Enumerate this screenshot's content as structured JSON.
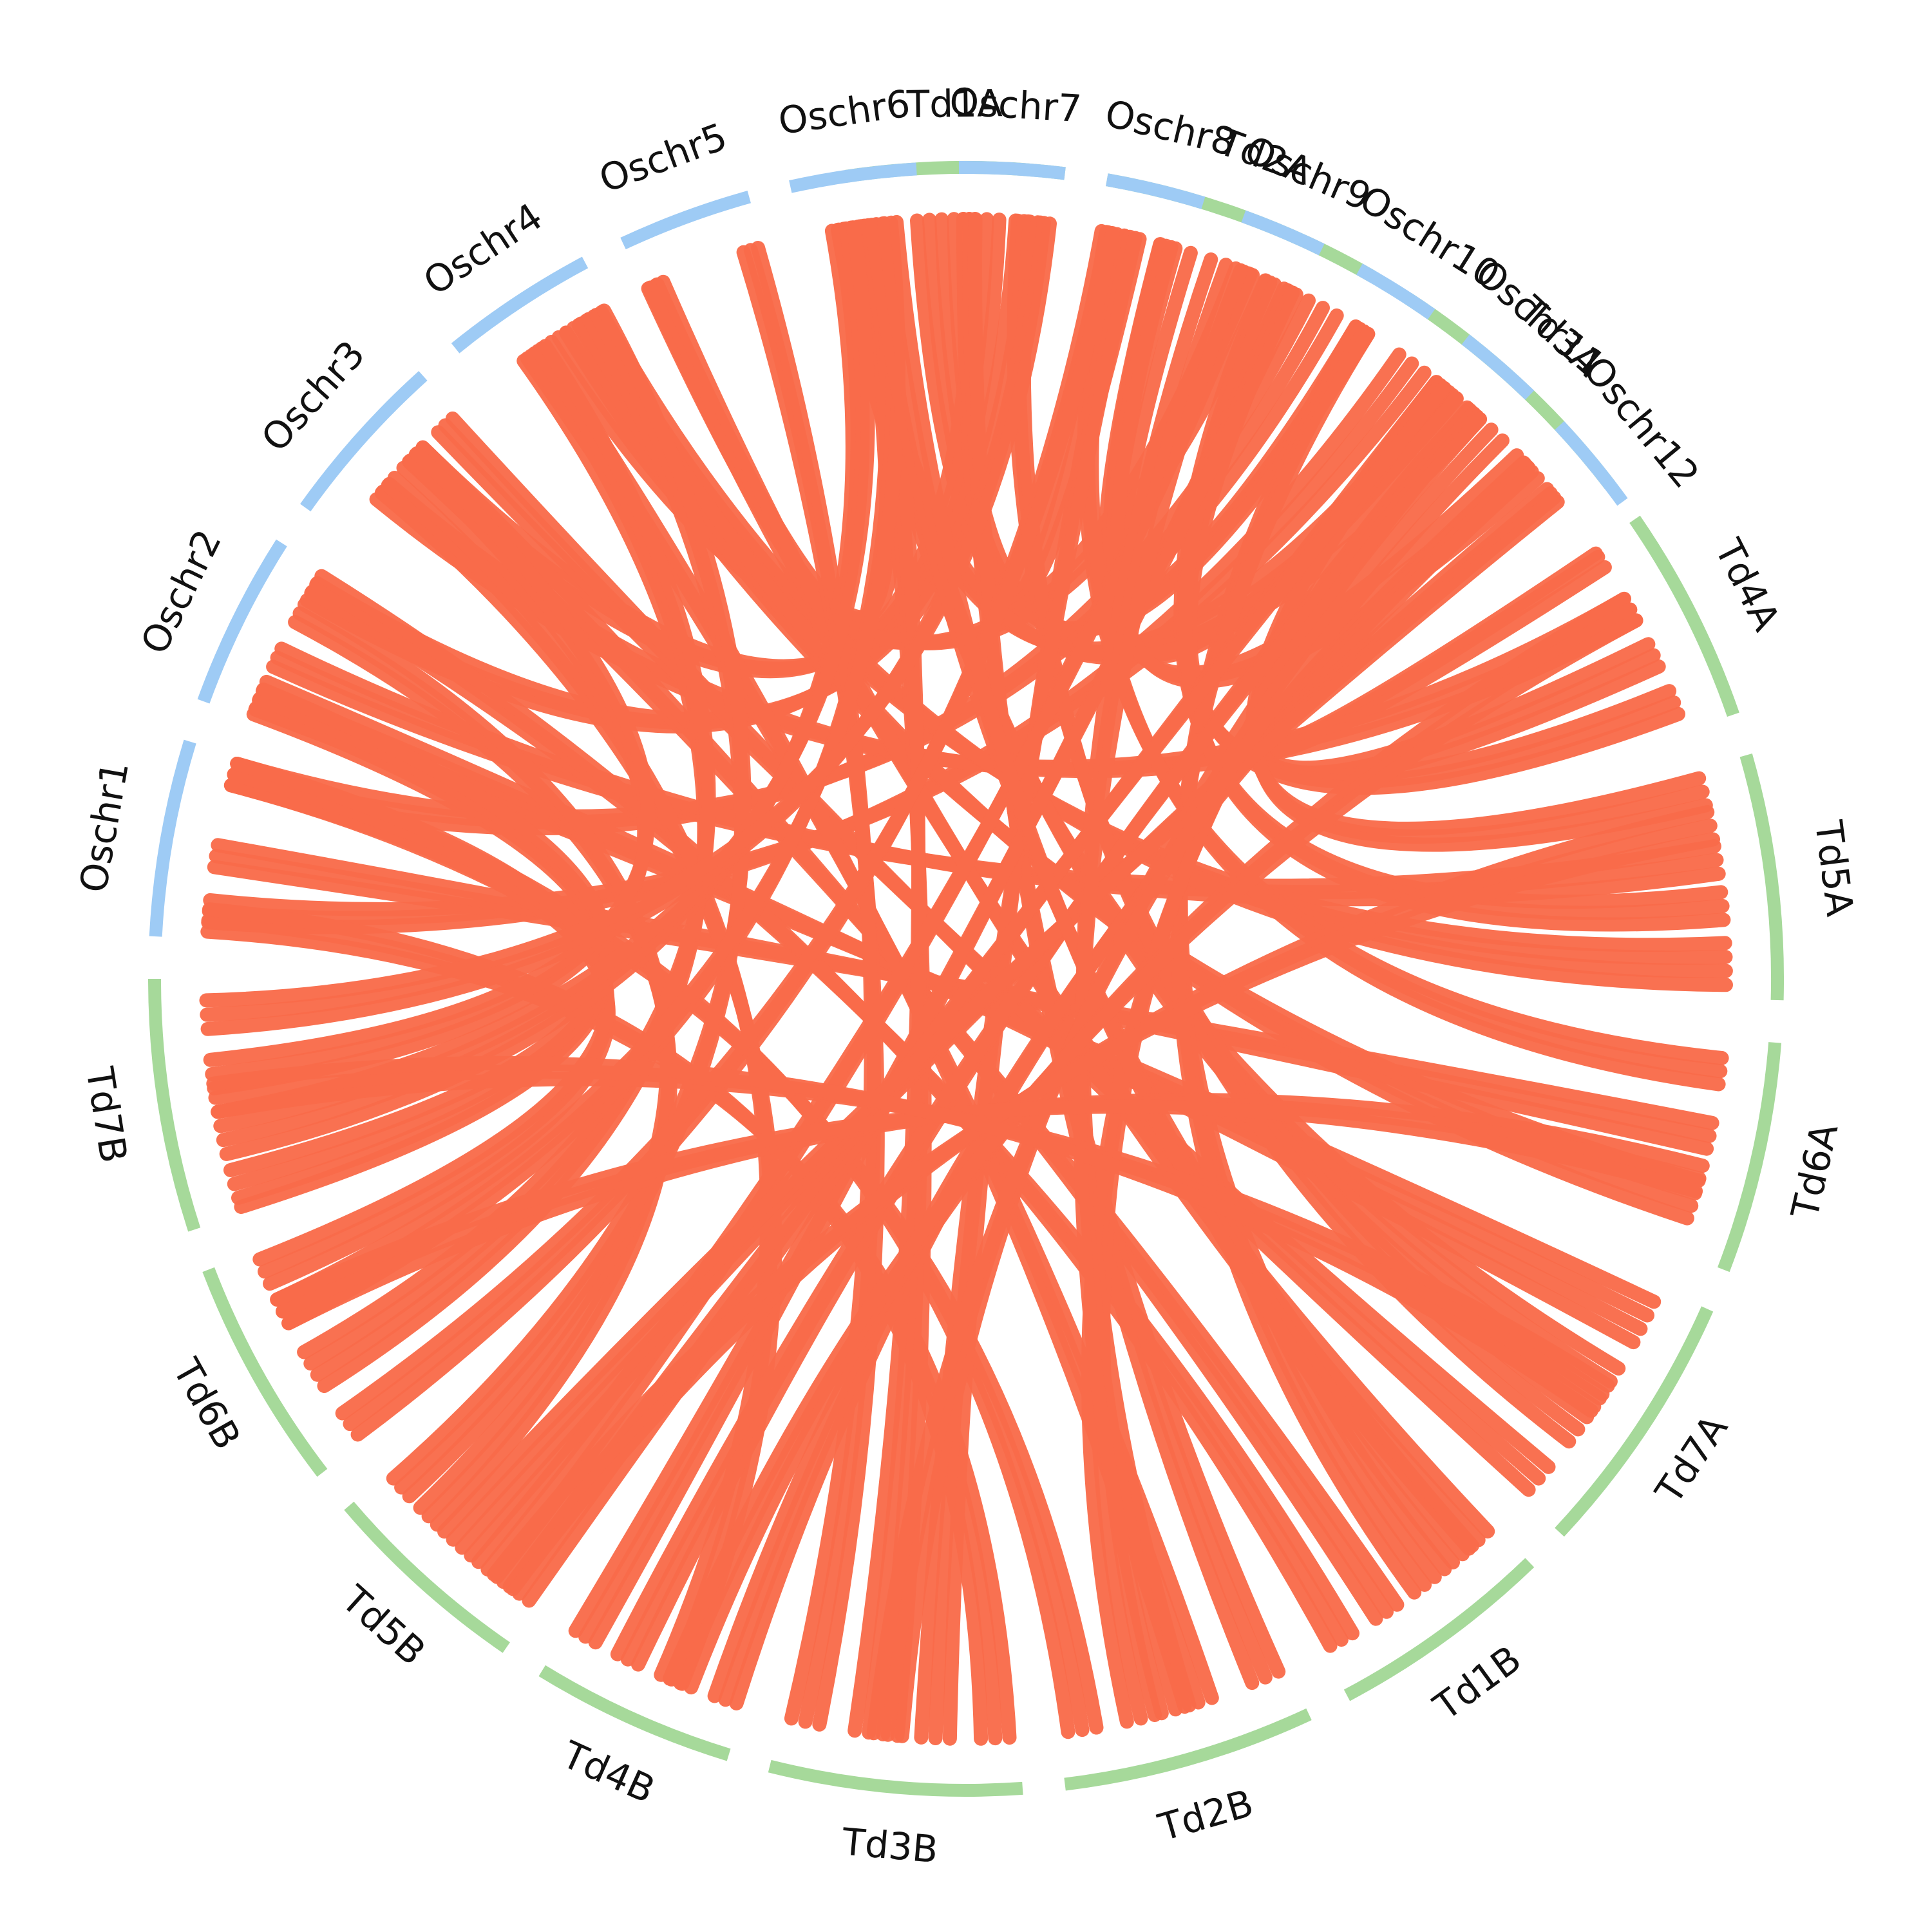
{
  "colors": {
    "rice": "#9ecbf5",
    "wheat": "#a6d99a",
    "link": "#f96b4a"
  },
  "chromosomes": [
    {
      "name": "Td1A",
      "group": "wheat",
      "start": -8.5,
      "end": 7.0
    },
    {
      "name": "Td2A",
      "group": "wheat",
      "start": 10.0,
      "end": 30.0
    },
    {
      "name": "Td3A",
      "group": "wheat",
      "start": 33.0,
      "end": 52.5
    },
    {
      "name": "Td4A",
      "group": "wheat",
      "start": 55.5,
      "end": 71.0
    },
    {
      "name": "Td5A",
      "group": "wheat",
      "start": 74.0,
      "end": 91.5
    },
    {
      "name": "Td6A",
      "group": "wheat",
      "start": 94.5,
      "end": 111.0
    },
    {
      "name": "Td7A",
      "group": "wheat",
      "start": 114.0,
      "end": 133.0
    },
    {
      "name": "Td1B",
      "group": "wheat",
      "start": 136.0,
      "end": 152.0
    },
    {
      "name": "Td2B",
      "group": "wheat",
      "start": 155.0,
      "end": 173.0
    },
    {
      "name": "Td3B",
      "group": "wheat",
      "start": 176.0,
      "end": 194.0
    },
    {
      "name": "Td4B",
      "group": "wheat",
      "start": 197.0,
      "end": 211.5
    },
    {
      "name": "Td5B",
      "group": "wheat",
      "start": 214.5,
      "end": 229.5
    },
    {
      "name": "Td6B",
      "group": "wheat",
      "start": 232.5,
      "end": 249.0
    },
    {
      "name": "Td7B",
      "group": "wheat",
      "start": 252.0,
      "end": 270.0
    },
    {
      "name": "Oschr1",
      "group": "rice",
      "start": 273.0,
      "end": 287.0
    },
    {
      "name": "Oschr2",
      "group": "rice",
      "start": 290.0,
      "end": 302.5
    },
    {
      "name": "Oschr3",
      "group": "rice",
      "start": 305.5,
      "end": 318.0
    },
    {
      "name": "Oschr4",
      "group": "rice",
      "start": 321.0,
      "end": 332.0
    },
    {
      "name": "Oschr5",
      "group": "rice",
      "start": 335.0,
      "end": 344.5
    },
    {
      "name": "Oschr6",
      "group": "rice",
      "start": 347.5,
      "end": 356.5
    },
    {
      "name": "Oschr7",
      "group": "rice",
      "start": 359.5,
      "end": 367.0
    },
    {
      "name": "Oschr8",
      "group": "rice",
      "start": 370.0,
      "end": 377.0
    },
    {
      "name": "Oschr9",
      "group": "rice",
      "start": 380.0,
      "end": 386.0
    },
    {
      "name": "Oschr10",
      "group": "rice",
      "start": 389.0,
      "end": 395.0
    },
    {
      "name": "Oschr11",
      "group": "rice",
      "start": 398.0,
      "end": 404.0
    },
    {
      "name": "Oschr12",
      "group": "rice",
      "start": 407.0,
      "end": 414.0
    }
  ],
  "link_bundles": [
    [
      "Td1A",
      "Oschr5",
      0.05,
      0.05,
      3
    ],
    [
      "Td1A",
      "Oschr10",
      0.4,
      0.4,
      4
    ],
    [
      "Td1A",
      "Oschr3",
      0.65,
      0.65,
      3
    ],
    [
      "Td1A",
      "Oschr2",
      0.85,
      0.85,
      3
    ],
    [
      "Td2A",
      "Oschr7",
      0.1,
      0.1,
      3
    ],
    [
      "Td2A",
      "Oschr11",
      0.3,
      0.3,
      3
    ],
    [
      "Td2A",
      "Oschr4",
      0.6,
      0.6,
      3
    ],
    [
      "Td2A",
      "Oschr1",
      0.9,
      0.9,
      3
    ],
    [
      "Td3A",
      "Oschr1",
      0.15,
      0.15,
      3
    ],
    [
      "Td3A",
      "Oschr6",
      0.4,
      0.4,
      4
    ],
    [
      "Td3A",
      "Oschr8",
      0.75,
      0.75,
      3
    ],
    [
      "Td4A",
      "Oschr12",
      0.05,
      0.05,
      3
    ],
    [
      "Td4A",
      "Oschr3",
      0.35,
      0.35,
      3
    ],
    [
      "Td4A",
      "Oschr11",
      0.6,
      0.6,
      3
    ],
    [
      "Td4A",
      "Oschr9",
      0.85,
      0.85,
      3
    ],
    [
      "Td5A",
      "Oschr11",
      0.1,
      0.1,
      3
    ],
    [
      "Td5A",
      "Oschr2",
      0.4,
      0.4,
      3
    ],
    [
      "Td5A",
      "Oschr9",
      0.6,
      0.6,
      3
    ],
    [
      "Td5A",
      "Oschr4",
      0.85,
      0.85,
      4
    ],
    [
      "Td6A",
      "Oschr8",
      0.15,
      0.15,
      3
    ],
    [
      "Td6A",
      "Oschr1",
      0.45,
      0.45,
      3
    ],
    [
      "Td6A",
      "Oschr4",
      0.75,
      0.75,
      4
    ],
    [
      "Td7A",
      "Oschr2",
      0.15,
      0.15,
      4
    ],
    [
      "Td7A",
      "Oschr6",
      0.45,
      0.45,
      4
    ],
    [
      "Td7A",
      "Oschr7",
      0.65,
      0.65,
      3
    ],
    [
      "Td7A",
      "Oschr3",
      0.9,
      0.9,
      3
    ],
    [
      "Td1B",
      "Oschr5",
      0.1,
      0.1,
      3
    ],
    [
      "Td1B",
      "Oschr10",
      0.4,
      0.4,
      4
    ],
    [
      "Td1B",
      "Oschr3",
      0.65,
      0.65,
      3
    ],
    [
      "Td1B",
      "Oschr2",
      0.9,
      0.9,
      3
    ],
    [
      "Td2B",
      "Oschr7",
      0.1,
      0.1,
      3
    ],
    [
      "Td2B",
      "Oschr4",
      0.4,
      0.4,
      3
    ],
    [
      "Td2B",
      "Oschr11",
      0.65,
      0.65,
      3
    ],
    [
      "Td2B",
      "Oschr1",
      0.9,
      0.9,
      3
    ],
    [
      "Td3B",
      "Oschr1",
      0.1,
      0.1,
      3
    ],
    [
      "Td3B",
      "Oschr8",
      0.35,
      0.35,
      3
    ],
    [
      "Td3B",
      "Oschr6",
      0.6,
      0.6,
      4
    ],
    [
      "Td3B",
      "Oschr5",
      0.9,
      0.9,
      3
    ],
    [
      "Td4B",
      "Oschr12",
      0.1,
      0.1,
      3
    ],
    [
      "Td4B",
      "Oschr3",
      0.4,
      0.4,
      3
    ],
    [
      "Td4B",
      "Oschr11",
      0.65,
      0.65,
      3
    ],
    [
      "Td4B",
      "Oschr9",
      0.9,
      0.9,
      3
    ],
    [
      "Td5B",
      "Oschr11",
      0.1,
      0.1,
      3
    ],
    [
      "Td5B",
      "Oschr9",
      0.3,
      0.3,
      3
    ],
    [
      "Td5B",
      "Oschr12",
      0.5,
      0.5,
      4
    ],
    [
      "Td5B",
      "Oschr2",
      0.7,
      0.7,
      3
    ],
    [
      "Td5B",
      "Oschr4",
      0.9,
      0.9,
      3
    ],
    [
      "Td6B",
      "Oschr8",
      0.1,
      0.1,
      3
    ],
    [
      "Td6B",
      "Oschr4",
      0.4,
      0.4,
      4
    ],
    [
      "Td6B",
      "Oschr6",
      0.7,
      0.7,
      3
    ],
    [
      "Td6B",
      "Oschr1",
      0.9,
      0.9,
      3
    ],
    [
      "Td7B",
      "Oschr2",
      0.1,
      0.1,
      4
    ],
    [
      "Td7B",
      "Oschr6",
      0.35,
      0.35,
      4
    ],
    [
      "Td7B",
      "Oschr3",
      0.6,
      0.6,
      3
    ],
    [
      "Td7B",
      "Oschr7",
      0.85,
      0.85,
      3
    ],
    [
      "Td1A",
      "Td1B",
      0.15,
      0.2,
      3
    ],
    [
      "Td2A",
      "Td2B",
      0.5,
      0.5,
      3
    ],
    [
      "Td3A",
      "Td3B",
      0.55,
      0.55,
      3
    ],
    [
      "Td4A",
      "Td4B",
      0.35,
      0.35,
      3
    ],
    [
      "Td5A",
      "Td5B",
      0.25,
      0.2,
      3
    ],
    [
      "Td6A",
      "Td6B",
      0.65,
      0.7,
      3
    ],
    [
      "Td7A",
      "Td7B",
      0.5,
      0.5,
      3
    ]
  ]
}
